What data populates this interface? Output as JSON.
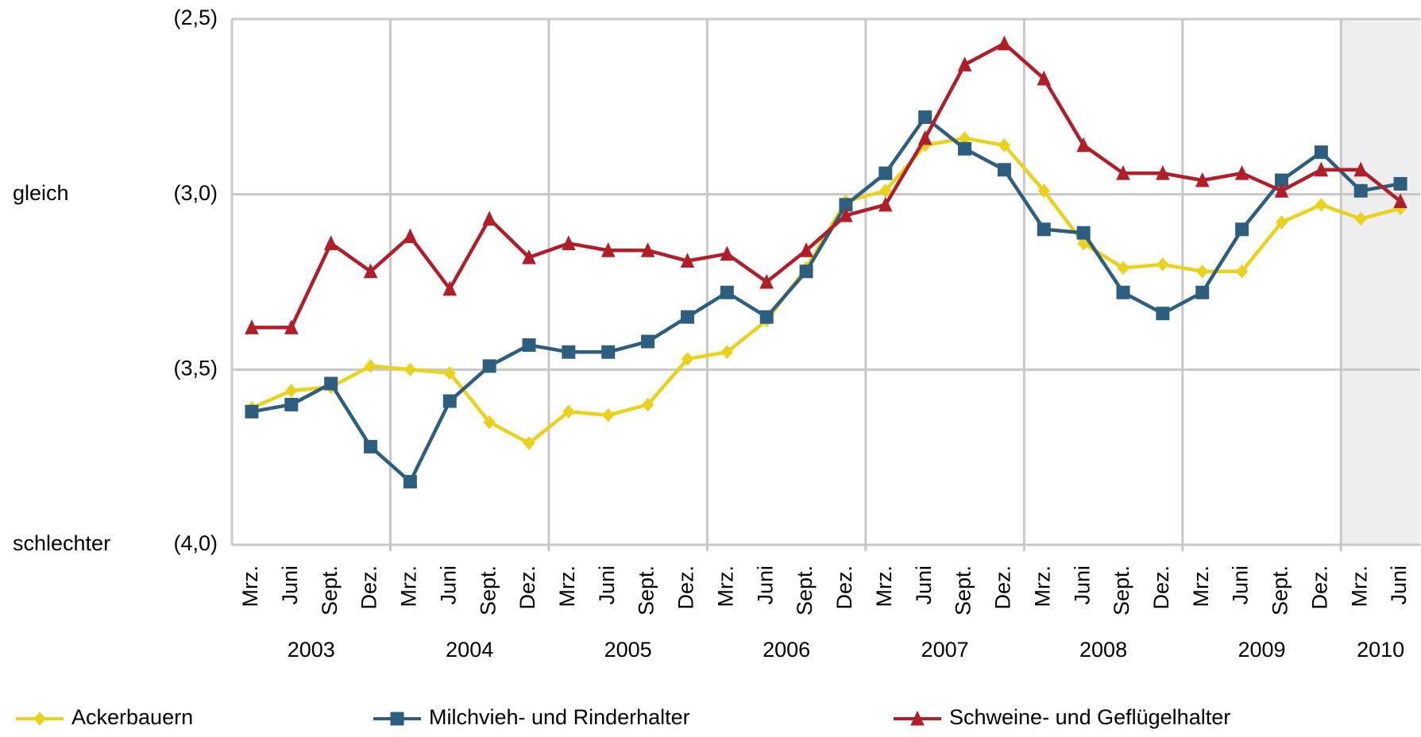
{
  "chart_data": {
    "type": "line",
    "categories": [
      "Mrz.",
      "Juni",
      "Sept.",
      "Dez.",
      "Mrz.",
      "Juni",
      "Sept.",
      "Dez.",
      "Mrz.",
      "Juni",
      "Sept.",
      "Dez.",
      "Mrz.",
      "Juni",
      "Sept.",
      "Dez.",
      "Mrz.",
      "Juni",
      "Sept.",
      "Dez.",
      "Mrz.",
      "Juni",
      "Sept.",
      "Dez.",
      "Mrz.",
      "Juni",
      "Sept.",
      "Dez.",
      "Mrz.",
      "Juni"
    ],
    "years": [
      "2003",
      "2004",
      "2005",
      "2006",
      "2007",
      "2008",
      "2009",
      "2010"
    ],
    "series": [
      {
        "name": "Ackerbauern",
        "color": "#e8d21d",
        "marker": "diamond",
        "values": [
          3.61,
          3.56,
          3.55,
          3.49,
          3.5,
          3.51,
          3.65,
          3.71,
          3.62,
          3.63,
          3.6,
          3.47,
          3.45,
          3.36,
          3.21,
          3.02,
          2.99,
          2.86,
          2.84,
          2.86,
          2.99,
          3.14,
          3.21,
          3.2,
          3.22,
          3.22,
          3.08,
          3.03,
          3.07,
          3.04
        ]
      },
      {
        "name": "Milchvieh- und Rinderhalter",
        "color": "#2e5e7e",
        "marker": "square",
        "values": [
          3.62,
          3.6,
          3.54,
          3.72,
          3.82,
          3.59,
          3.49,
          3.43,
          3.45,
          3.45,
          3.42,
          3.35,
          3.28,
          3.35,
          3.22,
          3.03,
          2.94,
          2.78,
          2.87,
          2.93,
          3.1,
          3.11,
          3.28,
          3.34,
          3.28,
          3.1,
          2.96,
          2.88,
          2.99,
          2.97
        ]
      },
      {
        "name": "Schweine- und Geflügelhalter",
        "color": "#b01e2a",
        "marker": "triangle",
        "values": [
          3.38,
          3.38,
          3.14,
          3.22,
          3.12,
          3.27,
          3.07,
          3.18,
          3.14,
          3.16,
          3.16,
          3.19,
          3.17,
          3.25,
          3.16,
          3.06,
          3.03,
          2.84,
          2.63,
          2.57,
          2.67,
          2.86,
          2.94,
          2.94,
          2.96,
          2.94,
          2.99,
          2.93,
          2.93,
          3.02
        ]
      }
    ],
    "ylim": [
      4.0,
      2.5
    ],
    "yticks": [
      {
        "value": 2.5,
        "label": "(2,5)"
      },
      {
        "value": 3.0,
        "label": "(3,0)"
      },
      {
        "value": 3.5,
        "label": "(3,5)"
      },
      {
        "value": 4.0,
        "label": "(4,0)"
      }
    ],
    "y_annotations": [
      {
        "value": 3.0,
        "label": "gleich"
      },
      {
        "value": 4.0,
        "label": "schlechter"
      }
    ],
    "grid": true
  }
}
